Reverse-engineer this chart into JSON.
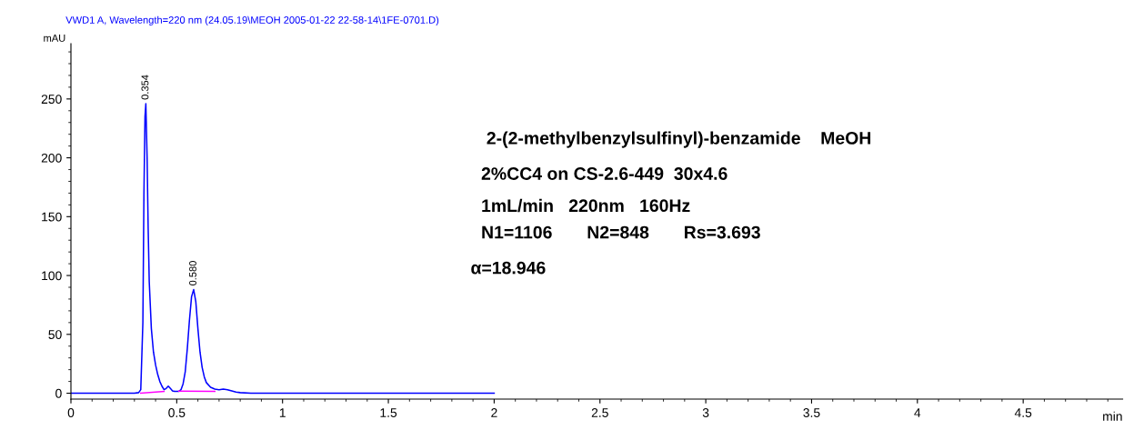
{
  "chart_data": {
    "type": "line",
    "title": "VWD1 A, Wavelength=220 nm (24.05.19\\MEOH 2005-01-22 22-58-14\\1FE-0701.D)",
    "xlabel": "min",
    "ylabel": "mAU",
    "series": [
      {
        "color": "#0000ff",
        "x": [
          0,
          0.1,
          0.2,
          0.3,
          0.32,
          0.33,
          0.34,
          0.345,
          0.35,
          0.354,
          0.36,
          0.365,
          0.37,
          0.38,
          0.39,
          0.4,
          0.41,
          0.42,
          0.43,
          0.44,
          0.45,
          0.46,
          0.47,
          0.48,
          0.49,
          0.5,
          0.51,
          0.52,
          0.53,
          0.54,
          0.55,
          0.56,
          0.57,
          0.58,
          0.59,
          0.6,
          0.61,
          0.62,
          0.63,
          0.64,
          0.66,
          0.68,
          0.7,
          0.72,
          0.74,
          0.76,
          0.78,
          0.8,
          0.85,
          1.0,
          1.5,
          2.0
        ],
        "values": [
          0,
          0,
          0,
          0,
          0.5,
          3,
          60,
          170,
          235,
          246,
          200,
          140,
          95,
          55,
          35,
          24,
          16,
          10,
          6,
          3,
          4,
          6,
          4,
          2,
          1.5,
          1.5,
          1.5,
          3,
          8,
          18,
          38,
          62,
          82,
          88,
          78,
          55,
          35,
          22,
          14,
          9,
          5,
          3.5,
          3,
          3.5,
          3,
          2,
          1,
          0.5,
          0,
          0,
          0,
          0
        ]
      },
      {
        "color": "#ff00ff",
        "x": [
          0.33,
          0.44
        ],
        "values": [
          0,
          1.5
        ]
      },
      {
        "color": "#ff00ff",
        "x": [
          0.51,
          0.68
        ],
        "values": [
          1.8,
          1.5
        ]
      }
    ],
    "xlim": [
      0,
      4.97
    ],
    "ylim": [
      -5,
      297
    ],
    "xticks": [
      0,
      {
        "value": 0.5,
        "label": "0.5"
      },
      1,
      {
        "value": 1.5,
        "label": "1.5"
      },
      2,
      {
        "value": 2.5,
        "label": "2.5"
      },
      3,
      {
        "value": 3.5,
        "label": "3.5"
      },
      4,
      {
        "value": 4.5,
        "label": "4.5"
      }
    ],
    "yticks": [
      0,
      50,
      100,
      150,
      200,
      250
    ],
    "marker": "none",
    "line_style": "solid",
    "grid": false,
    "legend": false,
    "annotations": [
      {
        "text": "0.354",
        "x": 0.354,
        "y": 246
      },
      {
        "text": "0.580",
        "x": 0.58,
        "y": 88
      },
      "2-(2-methylbenzylsulfinyl)-benzamide    MeOH",
      "2%CC4 on CS-2.6-449  30x4.6",
      "1mL/min   220nm   160Hz",
      "N1=1106       N2=848       Rs=3.693",
      "α=18.946"
    ]
  }
}
